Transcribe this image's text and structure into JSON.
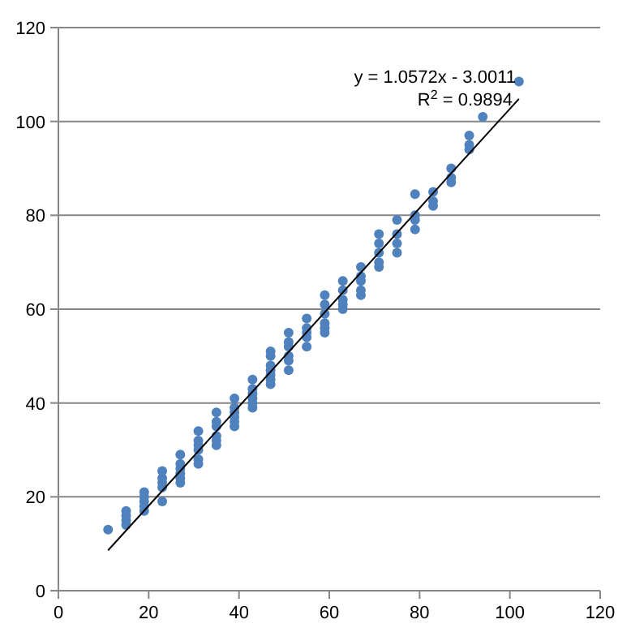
{
  "chart_data": {
    "type": "scatter",
    "xlim": [
      0,
      120
    ],
    "ylim": [
      0,
      120
    ],
    "xticks": [
      0,
      20,
      40,
      60,
      80,
      100,
      120
    ],
    "yticks": [
      0,
      20,
      40,
      60,
      80,
      100,
      120
    ],
    "grid": "y",
    "marker": "circle",
    "annotations": [
      "y = 1.0572x - 3.0011",
      "R$^{2}$ = 0.9894"
    ],
    "series": [
      {
        "type": "scatter",
        "color": "#4f81bd",
        "x": [
          11,
          15,
          15,
          15,
          15,
          19,
          19,
          19,
          19,
          19,
          23,
          23,
          23,
          23,
          23,
          27,
          27,
          27,
          27,
          27,
          27,
          31,
          31,
          31,
          31,
          31,
          31,
          35,
          35,
          35,
          35,
          35,
          35,
          39,
          39,
          39,
          39,
          39,
          39,
          43,
          43,
          43,
          43,
          43,
          43,
          47,
          47,
          47,
          47,
          47,
          47,
          47,
          51,
          51,
          51,
          51,
          51,
          51,
          55,
          55,
          55,
          55,
          55,
          59,
          59,
          59,
          59,
          59,
          59,
          63,
          63,
          63,
          63,
          63,
          67,
          67,
          67,
          67,
          67,
          71,
          71,
          71,
          71,
          71,
          75,
          75,
          75,
          75,
          79,
          79,
          79,
          79,
          83,
          83,
          83,
          87,
          87,
          87,
          91,
          91,
          91,
          94,
          102
        ],
        "values": [
          13,
          14,
          15,
          16,
          17,
          17,
          18,
          19,
          20,
          21,
          19,
          22,
          23,
          24,
          25.5,
          23,
          24,
          25,
          26,
          27,
          29,
          27,
          28,
          30,
          31,
          32,
          34,
          31,
          32,
          33,
          35,
          36,
          38,
          35,
          36,
          37,
          38,
          39,
          41,
          39,
          40,
          41,
          42,
          43,
          45,
          44,
          45,
          46,
          47,
          48,
          50,
          51,
          47,
          49,
          50,
          52,
          53,
          55,
          52,
          54,
          55,
          56,
          58,
          55,
          56,
          57,
          59,
          61,
          63,
          60,
          61,
          62,
          64,
          66,
          63,
          64,
          66,
          67,
          69,
          69,
          70,
          72,
          74,
          76,
          72,
          74,
          76,
          79,
          77,
          79,
          80,
          84.5,
          82,
          83,
          85,
          87,
          88,
          90,
          94,
          95,
          97,
          101,
          108.5
        ]
      },
      {
        "type": "line",
        "marker": "none",
        "color": "#000000",
        "x": [
          11,
          102
        ],
        "values": [
          8.6,
          104.8
        ]
      }
    ]
  }
}
